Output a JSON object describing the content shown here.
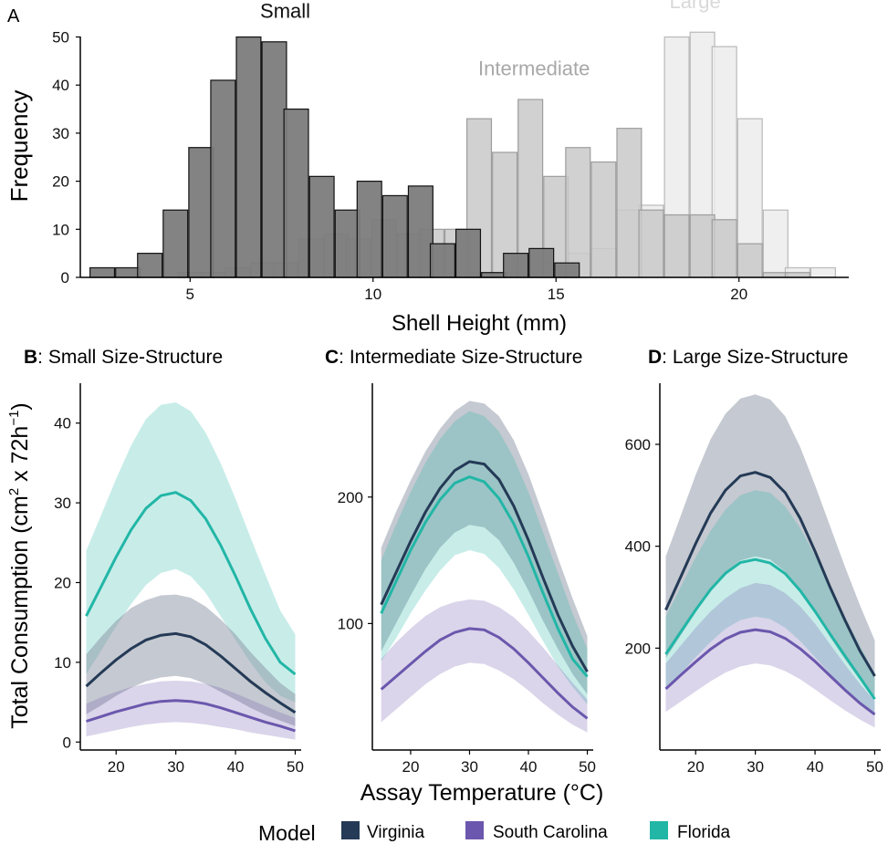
{
  "colors": {
    "virginia": "#243a56",
    "south_carolina": "#6b57ad",
    "florida": "#22b6a6",
    "hist_small": "#7c7c7c",
    "hist_intermediate": "#c9c9c9",
    "hist_large": "#ececec",
    "axis": "#000000"
  },
  "chart_data": [
    {
      "id": "A",
      "type": "bar",
      "panel_label": "A",
      "xlabel": "Shell Height (mm)",
      "ylabel": "Frequency",
      "xlim": [
        2,
        23
      ],
      "ylim": [
        0,
        52
      ],
      "xticks": [
        5,
        10,
        15,
        20
      ],
      "yticks": [
        0,
        10,
        20,
        30,
        40,
        50
      ],
      "bin_width": 0.67,
      "series": [
        {
          "name": "Large",
          "label": "Large",
          "color": "#ececec",
          "stroke": "#b9b9b9",
          "bins": [
            {
              "x": 12.9,
              "v": 1
            },
            {
              "x": 13.6,
              "v": 1
            },
            {
              "x": 14.3,
              "v": 2
            },
            {
              "x": 15.0,
              "v": 3
            },
            {
              "x": 15.6,
              "v": 5
            },
            {
              "x": 16.3,
              "v": 6
            },
            {
              "x": 17.0,
              "v": 14
            },
            {
              "x": 17.6,
              "v": 15
            },
            {
              "x": 18.3,
              "v": 50
            },
            {
              "x": 19.0,
              "v": 51
            },
            {
              "x": 19.6,
              "v": 48
            },
            {
              "x": 20.3,
              "v": 33
            },
            {
              "x": 21.0,
              "v": 14
            },
            {
              "x": 21.6,
              "v": 2
            },
            {
              "x": 22.3,
              "v": 2
            }
          ]
        },
        {
          "name": "Intermediate",
          "label": "Intermediate",
          "color": "#c9c9c9",
          "stroke": "#9d9d9d",
          "bins": [
            {
              "x": 5.0,
              "v": 1
            },
            {
              "x": 5.6,
              "v": 1
            },
            {
              "x": 6.3,
              "v": 2
            },
            {
              "x": 7.0,
              "v": 3
            },
            {
              "x": 7.6,
              "v": 3
            },
            {
              "x": 8.3,
              "v": 8
            },
            {
              "x": 9.0,
              "v": 9
            },
            {
              "x": 9.6,
              "v": 8
            },
            {
              "x": 10.3,
              "v": 12
            },
            {
              "x": 11.0,
              "v": 9
            },
            {
              "x": 11.6,
              "v": 10
            },
            {
              "x": 12.3,
              "v": 10
            },
            {
              "x": 12.9,
              "v": 33
            },
            {
              "x": 13.6,
              "v": 26
            },
            {
              "x": 14.3,
              "v": 37
            },
            {
              "x": 15.0,
              "v": 21
            },
            {
              "x": 15.6,
              "v": 27
            },
            {
              "x": 16.3,
              "v": 24
            },
            {
              "x": 17.0,
              "v": 31
            },
            {
              "x": 17.6,
              "v": 14
            },
            {
              "x": 18.3,
              "v": 13
            },
            {
              "x": 19.0,
              "v": 13
            },
            {
              "x": 19.6,
              "v": 12
            },
            {
              "x": 20.3,
              "v": 7
            },
            {
              "x": 21.0,
              "v": 1
            },
            {
              "x": 21.6,
              "v": 1
            }
          ]
        },
        {
          "name": "Small",
          "label": "Small",
          "color": "#7c7c7c",
          "stroke": "#111111",
          "bins": [
            {
              "x": 2.6,
              "v": 2
            },
            {
              "x": 3.3,
              "v": 2
            },
            {
              "x": 3.9,
              "v": 5
            },
            {
              "x": 4.6,
              "v": 14
            },
            {
              "x": 5.3,
              "v": 27
            },
            {
              "x": 5.9,
              "v": 41
            },
            {
              "x": 6.6,
              "v": 50
            },
            {
              "x": 7.3,
              "v": 49
            },
            {
              "x": 7.9,
              "v": 35
            },
            {
              "x": 8.6,
              "v": 21
            },
            {
              "x": 9.3,
              "v": 14
            },
            {
              "x": 9.9,
              "v": 20
            },
            {
              "x": 10.6,
              "v": 17
            },
            {
              "x": 11.3,
              "v": 19
            },
            {
              "x": 11.9,
              "v": 7
            },
            {
              "x": 12.6,
              "v": 10
            },
            {
              "x": 13.3,
              "v": 1
            },
            {
              "x": 13.9,
              "v": 5
            },
            {
              "x": 14.6,
              "v": 6
            },
            {
              "x": 15.3,
              "v": 3
            }
          ]
        }
      ],
      "annotations": [
        {
          "text": "Small",
          "x": 7.6,
          "y": 54,
          "color": "#111111"
        },
        {
          "text": "Intermediate",
          "x": 14.4,
          "y": 42,
          "color": "#a8a8a8"
        },
        {
          "text": "Large",
          "x": 18.8,
          "y": 56,
          "color": "#d9d9d9"
        }
      ]
    },
    {
      "id": "B",
      "type": "line",
      "panel_label": "B",
      "title": ": Small Size-Structure",
      "xlim": [
        14,
        51
      ],
      "ylim": [
        -1,
        45
      ],
      "xticks": [
        20,
        30,
        40,
        50
      ],
      "yticks": [
        0,
        10,
        20,
        30,
        40
      ],
      "x": [
        15,
        17.5,
        20,
        22.5,
        25,
        27.5,
        30,
        32.5,
        35,
        37.5,
        40,
        42.5,
        45,
        47.5,
        50
      ],
      "series": [
        {
          "name": "Florida",
          "values": [
            15.8,
            19.5,
            23.2,
            26.6,
            29.3,
            30.9,
            31.3,
            30.3,
            28.0,
            24.7,
            20.8,
            16.7,
            13.0,
            10.0,
            8.5
          ],
          "lower": [
            8.5,
            11.5,
            14.5,
            17.3,
            19.7,
            21.2,
            21.7,
            20.8,
            18.7,
            15.8,
            12.8,
            10.0,
            7.5,
            5.8,
            5.0
          ],
          "upper": [
            24.0,
            28.5,
            33.0,
            37.2,
            40.5,
            42.3,
            42.6,
            41.5,
            38.8,
            35.0,
            30.5,
            25.7,
            21.0,
            16.5,
            13.5
          ]
        },
        {
          "name": "Virginia",
          "values": [
            7.0,
            8.7,
            10.3,
            11.7,
            12.8,
            13.4,
            13.6,
            13.2,
            12.2,
            10.8,
            9.2,
            7.6,
            6.2,
            4.9,
            3.7
          ],
          "lower": [
            3.5,
            4.6,
            5.8,
            6.8,
            7.6,
            8.1,
            8.3,
            8.0,
            7.3,
            6.3,
            5.3,
            4.3,
            3.4,
            2.7,
            2.0
          ],
          "upper": [
            11.0,
            13.2,
            15.2,
            16.8,
            17.8,
            18.4,
            18.5,
            18.1,
            17.0,
            15.4,
            13.5,
            11.3,
            9.3,
            7.4,
            6.0
          ]
        },
        {
          "name": "South Carolina",
          "values": [
            2.6,
            3.2,
            3.8,
            4.3,
            4.8,
            5.1,
            5.2,
            5.1,
            4.8,
            4.3,
            3.7,
            3.1,
            2.5,
            2.0,
            1.4
          ],
          "lower": [
            0.7,
            1.1,
            1.5,
            1.9,
            2.2,
            2.4,
            2.5,
            2.4,
            2.2,
            1.9,
            1.6,
            1.2,
            0.9,
            0.6,
            0.3
          ],
          "upper": [
            4.8,
            5.6,
            6.3,
            6.9,
            7.3,
            7.6,
            7.7,
            7.6,
            7.3,
            6.8,
            6.1,
            5.3,
            4.5,
            3.7,
            3.0
          ]
        }
      ]
    },
    {
      "id": "C",
      "type": "line",
      "panel_label": "C",
      "title": ": Intermediate Size-Structure",
      "xlim": [
        13.5,
        51
      ],
      "ylim": [
        0,
        290
      ],
      "xticks": [
        20,
        30,
        40,
        50
      ],
      "yticks": [
        100,
        200
      ],
      "x": [
        15,
        17.5,
        20,
        22.5,
        25,
        27.5,
        30,
        32.5,
        35,
        37.5,
        40,
        42.5,
        45,
        47.5,
        50
      ],
      "series": [
        {
          "name": "Virginia",
          "values": [
            115,
            140,
            165,
            188,
            207,
            221,
            228,
            226,
            214,
            193,
            166,
            136,
            107,
            82,
            62
          ],
          "lower": [
            78,
            100,
            122,
            143,
            160,
            172,
            178,
            176,
            166,
            148,
            126,
            102,
            80,
            60,
            44
          ],
          "upper": [
            160,
            188,
            213,
            236,
            254,
            268,
            276,
            274,
            264,
            245,
            218,
            186,
            152,
            120,
            90
          ]
        },
        {
          "name": "Florida",
          "values": [
            108,
            133,
            158,
            180,
            198,
            211,
            216,
            212,
            199,
            179,
            153,
            124,
            96,
            72,
            58
          ],
          "lower": [
            70,
            88,
            108,
            126,
            142,
            154,
            158,
            155,
            144,
            127,
            107,
            86,
            66,
            50,
            36
          ],
          "upper": [
            150,
            178,
            204,
            227,
            246,
            260,
            268,
            264,
            252,
            231,
            204,
            172,
            140,
            108,
            80
          ]
        },
        {
          "name": "South Carolina",
          "values": [
            48,
            58,
            68,
            78,
            87,
            93,
            96,
            95,
            89,
            80,
            69,
            57,
            45,
            34,
            25
          ],
          "lower": [
            22,
            32,
            42,
            52,
            60,
            66,
            69,
            68,
            63,
            56,
            47,
            37,
            28,
            20,
            14
          ],
          "upper": [
            72,
            85,
            96,
            106,
            113,
            117,
            119,
            118,
            113,
            105,
            94,
            81,
            67,
            53,
            40
          ]
        }
      ]
    },
    {
      "id": "D",
      "type": "line",
      "panel_label": "D",
      "title": ": Large Size-Structure",
      "xlim": [
        14,
        51
      ],
      "ylim": [
        0,
        720
      ],
      "xticks": [
        20,
        30,
        40,
        50
      ],
      "yticks": [
        200,
        400,
        600
      ],
      "x": [
        15,
        17.5,
        20,
        22.5,
        25,
        27.5,
        30,
        32.5,
        35,
        37.5,
        40,
        42.5,
        45,
        47.5,
        50
      ],
      "series": [
        {
          "name": "Virginia",
          "values": [
            275,
            340,
            405,
            465,
            510,
            538,
            545,
            535,
            505,
            455,
            390,
            320,
            255,
            195,
            145
          ],
          "lower": [
            180,
            225,
            270,
            315,
            350,
            372,
            380,
            374,
            350,
            315,
            270,
            222,
            178,
            138,
            100
          ],
          "upper": [
            380,
            460,
            540,
            610,
            660,
            690,
            698,
            688,
            655,
            595,
            520,
            440,
            360,
            285,
            215
          ]
        },
        {
          "name": "Florida",
          "values": [
            188,
            232,
            275,
            315,
            347,
            368,
            374,
            367,
            346,
            313,
            272,
            228,
            185,
            143,
            100
          ],
          "lower": [
            120,
            150,
            182,
            212,
            238,
            255,
            262,
            257,
            240,
            214,
            182,
            150,
            118,
            90,
            66
          ],
          "upper": [
            262,
            320,
            378,
            430,
            472,
            500,
            510,
            505,
            478,
            436,
            382,
            322,
            262,
            205,
            150
          ]
        },
        {
          "name": "South Carolina",
          "values": [
            120,
            147,
            173,
            198,
            218,
            231,
            236,
            232,
            219,
            199,
            174,
            146,
            118,
            92,
            70
          ],
          "lower": [
            75,
            95,
            115,
            135,
            152,
            164,
            170,
            166,
            155,
            139,
            119,
            98,
            78,
            60,
            44
          ],
          "upper": [
            170,
            205,
            240,
            272,
            298,
            318,
            328,
            324,
            308,
            282,
            248,
            208,
            168,
            130,
            96
          ]
        }
      ]
    }
  ],
  "shared": {
    "ylabel_main": "Total Consumption (cm",
    "ylabel_sup1": "2",
    "ylabel_mid": " x 72h",
    "ylabel_sup2": "−1",
    "ylabel_end": ")",
    "xlabel": "Assay Temperature (°C)"
  },
  "legend": {
    "title": "Model",
    "items": [
      {
        "name": "Virginia",
        "color": "#243a56"
      },
      {
        "name": "South Carolina",
        "color": "#6b57ad"
      },
      {
        "name": "Florida",
        "color": "#22b6a6"
      }
    ]
  }
}
